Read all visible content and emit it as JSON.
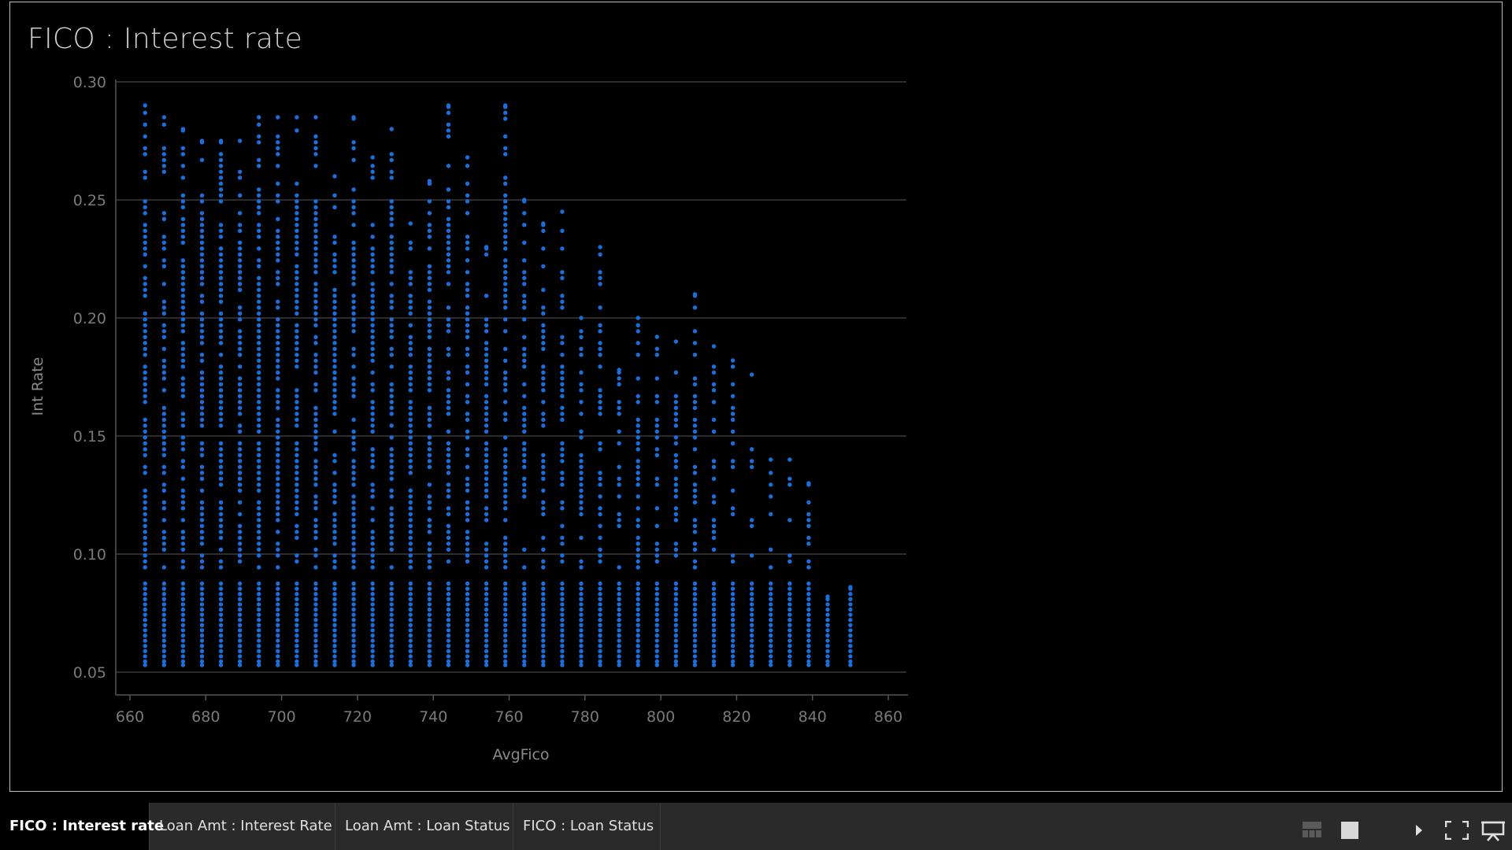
{
  "page": {
    "title": "FICO : Interest rate"
  },
  "tabs": [
    {
      "label": "FICO : Interest rate",
      "active": true
    },
    {
      "label": "Loan Amt : Interest Rate",
      "active": false
    },
    {
      "label": "Loan Amt : Loan Status",
      "active": false
    },
    {
      "label": "FICO : Loan Status",
      "active": false
    }
  ],
  "controls": [
    "layout-thumbnails-icon",
    "layout-single-icon",
    "play-icon",
    "fullscreen-icon",
    "present-icon"
  ],
  "colors": {
    "point": "#1a6fdc",
    "background": "#000000",
    "grid": "#3a3a3a"
  },
  "chart_data": {
    "type": "scatter",
    "title": "FICO : Interest rate",
    "xlabel": "AvgFico",
    "ylabel": "Int Rate",
    "xlim": [
      655,
      862
    ],
    "ylim": [
      0.04,
      0.305
    ],
    "xticks": [
      660,
      680,
      700,
      720,
      740,
      760,
      780,
      800,
      820,
      840,
      860
    ],
    "xtick_labels": [
      "660",
      "680",
      "700",
      "720",
      "740",
      "760",
      "780",
      "800",
      "820",
      "840",
      "860"
    ],
    "yticks": [
      0.05,
      0.1,
      0.15,
      0.2,
      0.25,
      0.3
    ],
    "ytick_labels": [
      "0.05",
      "0.10",
      "0.15",
      "0.20",
      "0.25",
      "0.30"
    ],
    "grid": true,
    "legend": "none",
    "series": [
      {
        "columns": [
          {
            "x": 664,
            "min": 0.053,
            "max": 0.29
          },
          {
            "x": 669,
            "min": 0.053,
            "max": 0.285
          },
          {
            "x": 674,
            "min": 0.053,
            "max": 0.28
          },
          {
            "x": 679,
            "min": 0.053,
            "max": 0.275
          },
          {
            "x": 684,
            "min": 0.053,
            "max": 0.275
          },
          {
            "x": 689,
            "min": 0.053,
            "max": 0.275
          },
          {
            "x": 694,
            "min": 0.053,
            "max": 0.285
          },
          {
            "x": 699,
            "min": 0.053,
            "max": 0.285
          },
          {
            "x": 704,
            "min": 0.053,
            "max": 0.285
          },
          {
            "x": 709,
            "min": 0.053,
            "max": 0.285
          },
          {
            "x": 714,
            "min": 0.053,
            "max": 0.26
          },
          {
            "x": 719,
            "min": 0.053,
            "max": 0.285
          },
          {
            "x": 724,
            "min": 0.053,
            "max": 0.268
          },
          {
            "x": 729,
            "min": 0.053,
            "max": 0.28
          },
          {
            "x": 734,
            "min": 0.053,
            "max": 0.24
          },
          {
            "x": 739,
            "min": 0.053,
            "max": 0.258
          },
          {
            "x": 744,
            "min": 0.053,
            "max": 0.29
          },
          {
            "x": 749,
            "min": 0.053,
            "max": 0.268
          },
          {
            "x": 754,
            "min": 0.053,
            "max": 0.23
          },
          {
            "x": 759,
            "min": 0.053,
            "max": 0.29
          },
          {
            "x": 764,
            "min": 0.053,
            "max": 0.25
          },
          {
            "x": 769,
            "min": 0.053,
            "max": 0.24
          },
          {
            "x": 774,
            "min": 0.053,
            "max": 0.245
          },
          {
            "x": 779,
            "min": 0.053,
            "max": 0.2
          },
          {
            "x": 784,
            "min": 0.053,
            "max": 0.23
          },
          {
            "x": 789,
            "min": 0.053,
            "max": 0.178
          },
          {
            "x": 794,
            "min": 0.053,
            "max": 0.2
          },
          {
            "x": 799,
            "min": 0.053,
            "max": 0.192
          },
          {
            "x": 804,
            "min": 0.053,
            "max": 0.19
          },
          {
            "x": 809,
            "min": 0.053,
            "max": 0.21
          },
          {
            "x": 814,
            "min": 0.053,
            "max": 0.188
          },
          {
            "x": 819,
            "min": 0.053,
            "max": 0.182
          },
          {
            "x": 824,
            "min": 0.053,
            "max": 0.176
          },
          {
            "x": 829,
            "min": 0.053,
            "max": 0.14
          },
          {
            "x": 834,
            "min": 0.053,
            "max": 0.14
          },
          {
            "x": 839,
            "min": 0.053,
            "max": 0.13
          },
          {
            "x": 844,
            "min": 0.053,
            "max": 0.082
          },
          {
            "x": 850,
            "min": 0.053,
            "max": 0.086
          }
        ]
      }
    ]
  }
}
